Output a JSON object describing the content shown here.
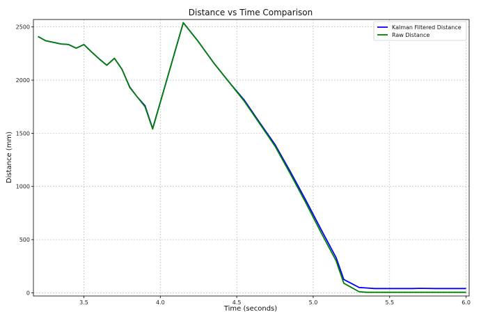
{
  "chart_data": {
    "type": "line",
    "title": "Distance vs Time Comparison",
    "xlabel": "Time (seconds)",
    "ylabel": "Distance (mm)",
    "xlim": [
      3.17,
      6.02
    ],
    "ylim": [
      -30,
      2570
    ],
    "xticks": [
      3.5,
      4.0,
      4.5,
      5.0,
      5.5,
      6.0
    ],
    "xtick_labels": [
      "3.5",
      "4.0",
      "4.5",
      "5.0",
      "5.5",
      "6.0"
    ],
    "yticks": [
      0,
      500,
      1000,
      1500,
      2000,
      2500
    ],
    "ytick_labels": [
      "0",
      "500",
      "1000",
      "1500",
      "2000",
      "2500"
    ],
    "grid": true,
    "legend_position": "top-right",
    "series": [
      {
        "name": "Kalman Filtered Distance",
        "color": "#0000ff",
        "x": [
          3.2,
          3.25,
          3.3,
          3.35,
          3.4,
          3.45,
          3.5,
          3.55,
          3.6,
          3.65,
          3.7,
          3.75,
          3.8,
          3.85,
          3.9,
          3.95,
          4.05,
          4.15,
          4.25,
          4.35,
          4.45,
          4.55,
          4.65,
          4.75,
          4.85,
          4.95,
          5.05,
          5.15,
          5.2,
          5.3,
          5.35,
          5.4,
          5.45,
          5.5,
          5.55,
          5.6,
          5.65,
          5.7,
          5.8,
          5.9,
          5.95,
          6.0
        ],
        "y": [
          2410,
          2370,
          2355,
          2340,
          2335,
          2300,
          2335,
          2265,
          2200,
          2140,
          2205,
          2100,
          1935,
          1840,
          1760,
          1545,
          2040,
          2540,
          2360,
          2160,
          1980,
          1810,
          1600,
          1395,
          1140,
          875,
          600,
          330,
          125,
          50,
          45,
          40,
          40,
          40,
          40,
          40,
          40,
          42,
          40,
          40,
          40,
          40
        ]
      },
      {
        "name": "Raw Distance",
        "color": "#008000",
        "x": [
          3.2,
          3.25,
          3.3,
          3.35,
          3.4,
          3.45,
          3.5,
          3.55,
          3.6,
          3.65,
          3.7,
          3.75,
          3.8,
          3.85,
          3.9,
          3.95,
          4.05,
          4.15,
          4.25,
          4.35,
          4.45,
          4.55,
          4.65,
          4.75,
          4.85,
          4.95,
          5.05,
          5.15,
          5.2,
          5.3,
          5.35,
          5.4,
          5.45,
          5.5,
          5.55,
          5.6,
          5.65,
          5.7,
          5.8,
          5.9,
          5.95,
          6.0
        ],
        "y": [
          2410,
          2370,
          2355,
          2340,
          2335,
          2300,
          2335,
          2265,
          2200,
          2140,
          2205,
          2100,
          1930,
          1840,
          1750,
          1540,
          2040,
          2540,
          2360,
          2160,
          1980,
          1800,
          1590,
          1380,
          1120,
          850,
          570,
          300,
          90,
          10,
          5,
          5,
          5,
          5,
          5,
          5,
          5,
          5,
          5,
          5,
          5,
          5
        ]
      }
    ]
  }
}
